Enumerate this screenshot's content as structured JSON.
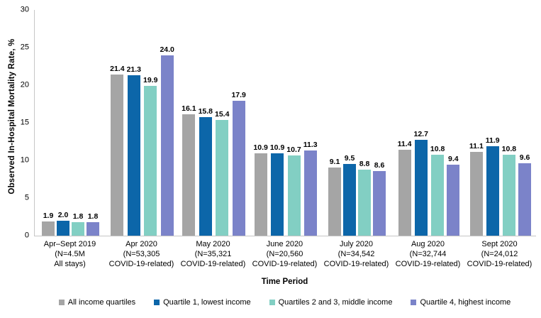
{
  "chart_data": {
    "type": "bar",
    "title": "",
    "ylabel": "Observed In-Hospital Mortality Rate, %",
    "xlabel": "Time Period",
    "ylim": [
      0,
      30
    ],
    "yticks": [
      0,
      5,
      10,
      15,
      20,
      25,
      30
    ],
    "grid": false,
    "legend_position": "bottom",
    "value_label_decimals": 1,
    "patterned_category_index": 0,
    "axis_line_color": "#c6c6c6",
    "categories": [
      [
        "Apr–Sept 2019",
        "(N=4.5M",
        "All stays)"
      ],
      [
        "Apr 2020",
        "(N=53,305",
        "COVID-19-related)"
      ],
      [
        "May 2020",
        "(N=35,321",
        "COVID-19-related)"
      ],
      [
        "June 2020",
        "(N=20,560",
        "COVID-19-related)"
      ],
      [
        "July 2020",
        "(N=34,542",
        "COVID-19-related)"
      ],
      [
        "Aug 2020",
        "(N=32,744",
        "COVID-19-related)"
      ],
      [
        "Sept 2020",
        "(N=24,012",
        "COVID-19-related)"
      ]
    ],
    "series": [
      {
        "name": "All income quartiles",
        "color": "#a5a5a5",
        "values": [
          1.9,
          21.4,
          16.1,
          10.9,
          9.1,
          11.4,
          11.1
        ]
      },
      {
        "name": "Quartile 1, lowest income",
        "color": "#0c66a9",
        "values": [
          2.0,
          21.3,
          15.8,
          10.9,
          9.5,
          12.7,
          11.9
        ]
      },
      {
        "name": "Quartiles 2 and 3, middle income",
        "color": "#82cfc3",
        "values": [
          1.8,
          19.9,
          15.4,
          10.7,
          8.8,
          10.8,
          10.8
        ]
      },
      {
        "name": "Quartile 4, highest income",
        "color": "#7b83c9",
        "values": [
          1.8,
          24.0,
          17.9,
          11.3,
          8.6,
          9.4,
          9.6
        ]
      }
    ]
  }
}
